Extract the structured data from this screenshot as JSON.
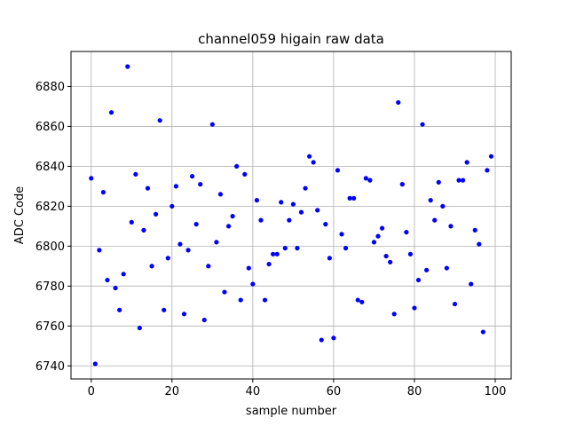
{
  "chart_data": {
    "type": "scatter",
    "title": "channel059 higain raw data",
    "xlabel": "sample number",
    "ylabel": "ADC Code",
    "xlim": [
      -5,
      103.95
    ],
    "ylim": [
      6733.45,
      6897.55
    ],
    "xticks": [
      0,
      20,
      40,
      60,
      80,
      100
    ],
    "yticks": [
      6740,
      6760,
      6780,
      6800,
      6820,
      6840,
      6860,
      6880
    ],
    "grid": true,
    "marker_color": "#0000ff",
    "series": [
      {
        "x": [
          0,
          1,
          2,
          3,
          4,
          5,
          6,
          7,
          8,
          9,
          10,
          11,
          12,
          13,
          14,
          15,
          16,
          17,
          18,
          19,
          20,
          21,
          22,
          23,
          24,
          25,
          26,
          27,
          28,
          29,
          30,
          31,
          32,
          33,
          34,
          35,
          36,
          37,
          38,
          39,
          40,
          41,
          42,
          43,
          44,
          45,
          46,
          47,
          48,
          49,
          50,
          51,
          52,
          53,
          54,
          55,
          56,
          57,
          58,
          59,
          60,
          61,
          62,
          63,
          64,
          65,
          66,
          67,
          68,
          69,
          70,
          71,
          72,
          73,
          74,
          75,
          76,
          77,
          78,
          79,
          80,
          81,
          82,
          83,
          84,
          85,
          86,
          87,
          88,
          89,
          90,
          91,
          92,
          93,
          94,
          95,
          96,
          97,
          98,
          99
        ],
        "y": [
          6834,
          6741,
          6798,
          6827,
          6783,
          6867,
          6779,
          6768,
          6786,
          6890,
          6812,
          6836,
          6759,
          6808,
          6829,
          6790,
          6816,
          6863,
          6768,
          6794,
          6820,
          6830,
          6801,
          6766,
          6798,
          6835,
          6811,
          6831,
          6763,
          6790,
          6861,
          6802,
          6826,
          6777,
          6810,
          6815,
          6840,
          6773,
          6836,
          6789,
          6781,
          6823,
          6813,
          6773,
          6791,
          6796,
          6796,
          6822,
          6799,
          6813,
          6821,
          6799,
          6817,
          6829,
          6845,
          6842,
          6818,
          6753,
          6811,
          6794,
          6754,
          6838,
          6806,
          6799,
          6824,
          6824,
          6773,
          6772,
          6834,
          6833,
          6802,
          6805,
          6809,
          6795,
          6792,
          6766,
          6872,
          6831,
          6807,
          6796,
          6769,
          6783,
          6861,
          6788,
          6823,
          6813,
          6832,
          6820,
          6789,
          6810,
          6771,
          6833,
          6833,
          6842,
          6781,
          6808,
          6801,
          6757,
          6838,
          6845
        ]
      }
    ]
  }
}
